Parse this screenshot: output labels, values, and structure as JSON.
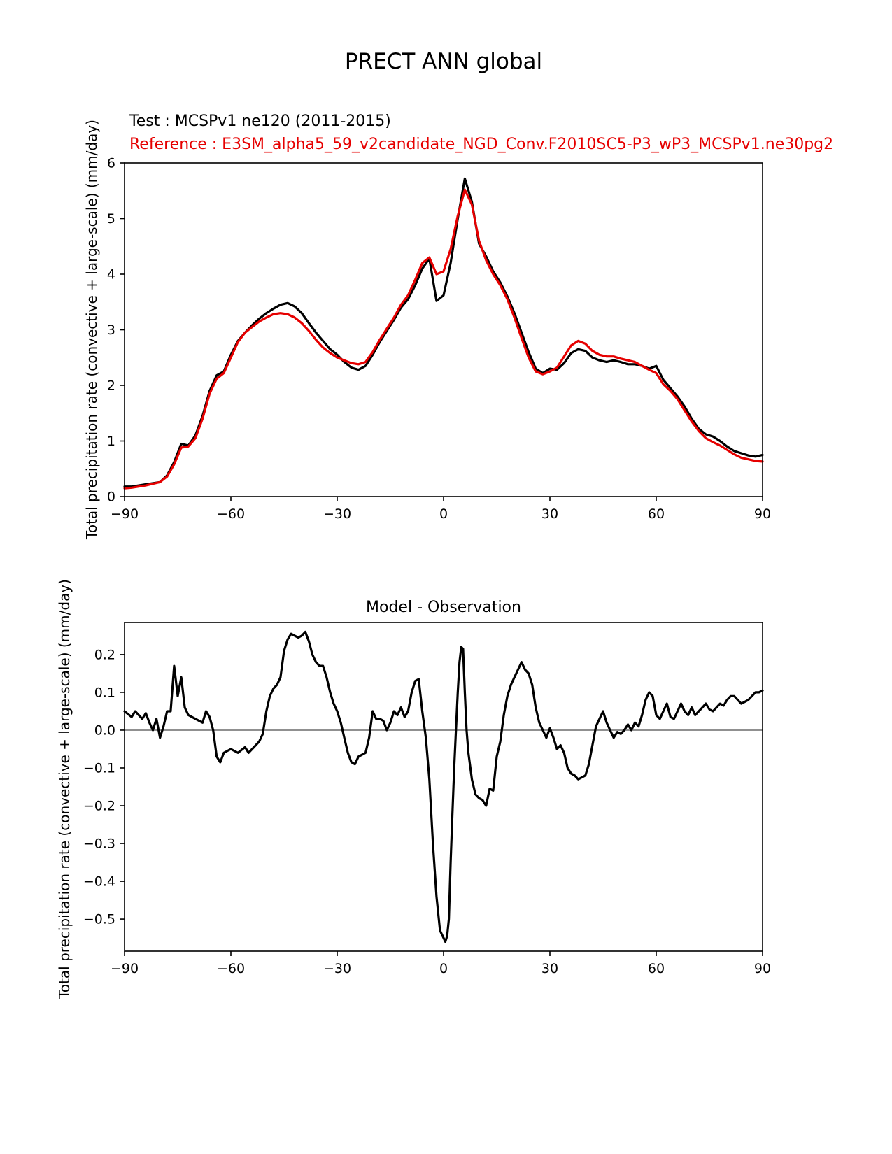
{
  "chart_data": [
    {
      "type": "line",
      "title": "PRECT ANN global",
      "ylabel": "Total precipitation rate (convective + large-scale) (mm/day)",
      "xlabel": "",
      "grid": false,
      "legend_position": "above-top-left",
      "xlim": [
        -90,
        90
      ],
      "ylim": [
        0,
        6
      ],
      "xticks": [
        -90,
        -60,
        -30,
        0,
        30,
        60,
        90
      ],
      "xtick_labels": [
        "−90",
        "−60",
        "−30",
        "0",
        "30",
        "60",
        "90"
      ],
      "yticks": [
        0,
        1,
        2,
        3,
        4,
        5,
        6
      ],
      "ytick_labels": [
        "0",
        "1",
        "2",
        "3",
        "4",
        "5",
        "6"
      ],
      "legend": [
        {
          "label": "Test : MCSPv1 ne120 (2011-2015)",
          "color": "#000000"
        },
        {
          "label": "Reference : E3SM_alpha5_59_v2candidate_NGD_Conv.F2010SC5-P3_wP3_MCSPv1.ne30pg2",
          "color": "#e60000"
        }
      ],
      "x_start": -90,
      "x_step": 2,
      "series": [
        {
          "name": "test",
          "color": "#000000",
          "y": [
            0.18,
            0.18,
            0.2,
            0.22,
            0.24,
            0.26,
            0.38,
            0.62,
            0.95,
            0.92,
            1.1,
            1.45,
            1.9,
            2.18,
            2.25,
            2.55,
            2.8,
            2.95,
            3.08,
            3.2,
            3.3,
            3.38,
            3.45,
            3.48,
            3.42,
            3.3,
            3.12,
            2.95,
            2.8,
            2.65,
            2.55,
            2.42,
            2.32,
            2.28,
            2.35,
            2.55,
            2.78,
            2.98,
            3.18,
            3.4,
            3.55,
            3.8,
            4.1,
            4.28,
            3.52,
            3.62,
            4.2,
            5.0,
            5.72,
            5.3,
            4.55,
            4.32,
            4.05,
            3.85,
            3.6,
            3.3,
            2.95,
            2.6,
            2.3,
            2.22,
            2.3,
            2.28,
            2.4,
            2.58,
            2.65,
            2.62,
            2.5,
            2.45,
            2.42,
            2.45,
            2.42,
            2.38,
            2.38,
            2.35,
            2.3,
            2.35,
            2.1,
            1.95,
            1.8,
            1.62,
            1.4,
            1.22,
            1.12,
            1.08,
            1.0,
            0.9,
            0.82,
            0.78,
            0.74,
            0.72,
            0.75
          ]
        },
        {
          "name": "reference",
          "color": "#e60000",
          "y": [
            0.15,
            0.16,
            0.18,
            0.2,
            0.23,
            0.26,
            0.36,
            0.58,
            0.88,
            0.9,
            1.05,
            1.4,
            1.85,
            2.12,
            2.22,
            2.5,
            2.78,
            2.95,
            3.05,
            3.15,
            3.22,
            3.28,
            3.3,
            3.28,
            3.22,
            3.12,
            2.98,
            2.82,
            2.68,
            2.58,
            2.5,
            2.45,
            2.4,
            2.38,
            2.42,
            2.6,
            2.82,
            3.02,
            3.22,
            3.45,
            3.62,
            3.9,
            4.2,
            4.3,
            4.0,
            4.05,
            4.45,
            5.05,
            5.52,
            5.25,
            4.6,
            4.25,
            4.0,
            3.8,
            3.55,
            3.22,
            2.85,
            2.5,
            2.25,
            2.2,
            2.25,
            2.32,
            2.52,
            2.72,
            2.8,
            2.75,
            2.62,
            2.55,
            2.52,
            2.52,
            2.48,
            2.45,
            2.42,
            2.35,
            2.28,
            2.22,
            2.02,
            1.9,
            1.75,
            1.55,
            1.35,
            1.18,
            1.05,
            0.98,
            0.92,
            0.84,
            0.76,
            0.7,
            0.67,
            0.64,
            0.63
          ]
        }
      ]
    },
    {
      "type": "line",
      "title": "Model - Observation",
      "ylabel": "Total precipitation rate (convective + large-scale) (mm/day)",
      "xlabel": "",
      "grid": false,
      "zero_line": true,
      "zero_line_color": "#808080",
      "xlim": [
        -90,
        90
      ],
      "ylim": [
        -0.585,
        0.285
      ],
      "xticks": [
        -90,
        -60,
        -30,
        0,
        30,
        60,
        90
      ],
      "xtick_labels": [
        "−90",
        "−60",
        "−30",
        "0",
        "30",
        "60",
        "90"
      ],
      "yticks": [
        0.2,
        0.1,
        0.0,
        -0.1,
        -0.2,
        -0.3,
        -0.4,
        -0.5
      ],
      "ytick_labels": [
        "0.2",
        "0.1",
        "0.0",
        "−0.1",
        "−0.2",
        "−0.3",
        "−0.4",
        "−0.5"
      ],
      "series": [
        {
          "name": "difference",
          "color": "#000000",
          "x": [
            -90,
            -88,
            -87,
            -86,
            -85,
            -84,
            -83,
            -82,
            -81,
            -80,
            -79,
            -78,
            -77,
            -76,
            -75,
            -74,
            -73,
            -72,
            -70,
            -68,
            -67,
            -66,
            -65,
            -64,
            -63,
            -62,
            -60,
            -58,
            -56,
            -55,
            -53,
            -52,
            -51,
            -50,
            -49,
            -48,
            -47,
            -46,
            -45,
            -44,
            -43,
            -42,
            -41,
            -40,
            -39,
            -38,
            -37,
            -36,
            -35,
            -34,
            -33,
            -32,
            -31,
            -30,
            -29,
            -28,
            -27,
            -26,
            -25,
            -24,
            -23,
            -22,
            -21,
            -20,
            -19,
            -18,
            -17,
            -16,
            -15,
            -14,
            -13,
            -12,
            -11,
            -10,
            -9,
            -8,
            -7,
            -6,
            -5,
            -4,
            -3,
            -2,
            -1,
            0,
            0.5,
            1,
            1.5,
            2,
            2.5,
            3,
            3.5,
            4,
            4.5,
            5,
            5.5,
            6,
            6.5,
            7,
            8,
            9,
            10,
            11,
            12,
            13,
            14,
            15,
            16,
            17,
            18,
            19,
            20,
            21,
            22,
            23,
            24,
            25,
            26,
            27,
            28,
            29,
            30,
            31,
            32,
            33,
            34,
            35,
            36,
            37,
            38,
            39,
            40,
            41,
            42,
            43,
            44,
            45,
            46,
            47,
            48,
            49,
            50,
            51,
            52,
            53,
            54,
            55,
            56,
            57,
            58,
            59,
            60,
            61,
            62,
            63,
            64,
            65,
            66,
            67,
            68,
            69,
            70,
            71,
            72,
            73,
            74,
            75,
            76,
            77,
            78,
            79,
            80,
            81,
            82,
            83,
            84,
            85,
            86,
            87,
            88,
            89,
            90
          ],
          "y": [
            0.05,
            0.035,
            0.05,
            0.04,
            0.03,
            0.045,
            0.02,
            0.0,
            0.03,
            -0.02,
            0.01,
            0.05,
            0.05,
            0.17,
            0.09,
            0.14,
            0.06,
            0.04,
            0.03,
            0.02,
            0.05,
            0.035,
            0.0,
            -0.07,
            -0.085,
            -0.06,
            -0.05,
            -0.06,
            -0.045,
            -0.06,
            -0.04,
            -0.03,
            -0.01,
            0.05,
            0.09,
            0.11,
            0.12,
            0.14,
            0.21,
            0.24,
            0.255,
            0.25,
            0.245,
            0.25,
            0.26,
            0.235,
            0.2,
            0.18,
            0.17,
            0.17,
            0.14,
            0.1,
            0.07,
            0.05,
            0.02,
            -0.02,
            -0.06,
            -0.085,
            -0.09,
            -0.07,
            -0.065,
            -0.06,
            -0.02,
            0.05,
            0.03,
            0.03,
            0.025,
            0.0,
            0.02,
            0.05,
            0.04,
            0.06,
            0.035,
            0.05,
            0.1,
            0.13,
            0.135,
            0.05,
            -0.02,
            -0.13,
            -0.3,
            -0.44,
            -0.53,
            -0.55,
            -0.56,
            -0.545,
            -0.5,
            -0.35,
            -0.22,
            -0.1,
            0.0,
            0.1,
            0.18,
            0.22,
            0.215,
            0.1,
            0.0,
            -0.06,
            -0.13,
            -0.17,
            -0.18,
            -0.185,
            -0.2,
            -0.155,
            -0.16,
            -0.07,
            -0.03,
            0.04,
            0.09,
            0.12,
            0.14,
            0.16,
            0.18,
            0.16,
            0.15,
            0.12,
            0.06,
            0.02,
            0.0,
            -0.02,
            0.005,
            -0.02,
            -0.05,
            -0.04,
            -0.06,
            -0.1,
            -0.115,
            -0.12,
            -0.13,
            -0.125,
            -0.12,
            -0.09,
            -0.04,
            0.01,
            0.03,
            0.05,
            0.02,
            0.0,
            -0.02,
            -0.005,
            -0.01,
            0.0,
            0.015,
            0.0,
            0.02,
            0.01,
            0.04,
            0.08,
            0.1,
            0.09,
            0.04,
            0.03,
            0.05,
            0.07,
            0.035,
            0.03,
            0.05,
            0.07,
            0.05,
            0.04,
            0.06,
            0.04,
            0.05,
            0.06,
            0.07,
            0.055,
            0.05,
            0.06,
            0.07,
            0.065,
            0.08,
            0.09,
            0.09,
            0.08,
            0.07,
            0.075,
            0.08,
            0.09,
            0.1,
            0.1,
            0.105
          ]
        }
      ]
    }
  ]
}
